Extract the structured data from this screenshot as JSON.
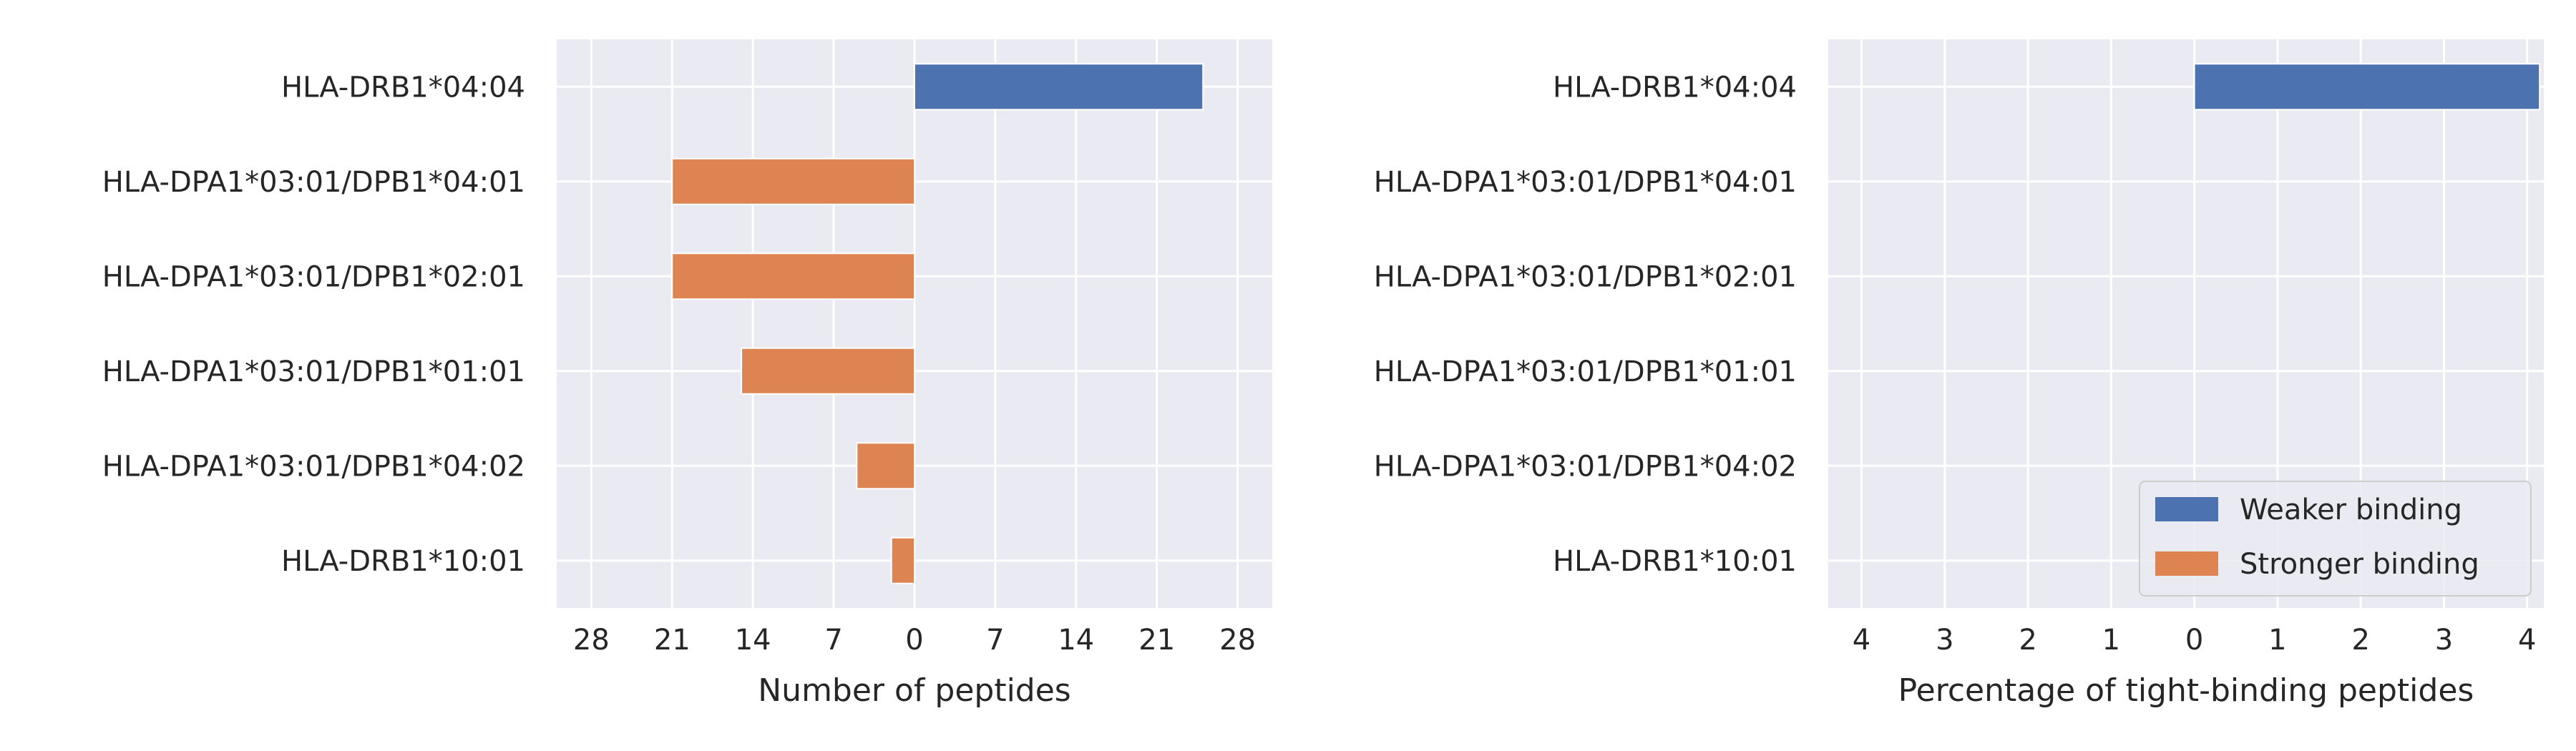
{
  "colors": {
    "panel_bg": "#eaeaf2",
    "grid": "#ffffff",
    "weaker": "#4c72b0",
    "stronger": "#dd8452",
    "text": "#262626"
  },
  "chart_data": [
    {
      "type": "bar",
      "orientation": "horizontal",
      "categories": [
        "HLA-DRB1*04:04",
        "HLA-DPA1*03:01/DPB1*04:01",
        "HLA-DPA1*03:01/DPB1*02:01",
        "HLA-DPA1*03:01/DPB1*01:01",
        "HLA-DPA1*03:01/DPB1*04:02",
        "HLA-DRB1*10:01"
      ],
      "series": [
        {
          "name": "Weaker binding",
          "values": [
            25,
            0,
            0,
            0,
            0,
            0
          ]
        },
        {
          "name": "Stronger binding",
          "values": [
            0,
            -21,
            -21,
            -15,
            -5,
            -2
          ]
        }
      ],
      "xlabel": "Number of peptides",
      "xlim": [
        -31,
        31
      ],
      "xticks": [
        -28,
        -21,
        -14,
        -7,
        0,
        7,
        14,
        21,
        28
      ],
      "xtick_labels": [
        "28",
        "21",
        "14",
        "7",
        "0",
        "7",
        "14",
        "21",
        "28"
      ],
      "grid": true
    },
    {
      "type": "bar",
      "orientation": "horizontal",
      "categories": [
        "HLA-DRB1*04:04",
        "HLA-DPA1*03:01/DPB1*04:01",
        "HLA-DPA1*03:01/DPB1*02:01",
        "HLA-DPA1*03:01/DPB1*01:01",
        "HLA-DPA1*03:01/DPB1*04:02",
        "HLA-DRB1*10:01"
      ],
      "series": [
        {
          "name": "Weaker binding",
          "values": [
            4.15,
            0,
            0,
            0,
            0,
            0
          ]
        },
        {
          "name": "Stronger binding",
          "values": [
            0,
            0,
            0,
            0,
            0,
            0
          ]
        }
      ],
      "xlabel": "Percentage of tight-binding peptides",
      "xlim": [
        -4.4,
        4.2
      ],
      "xticks": [
        -4,
        -3,
        -2,
        -1,
        0,
        1,
        2,
        3,
        4
      ],
      "xtick_labels": [
        "4",
        "3",
        "2",
        "1",
        "0",
        "1",
        "2",
        "3",
        "4"
      ],
      "grid": true,
      "legend": {
        "position": "lower-right",
        "entries": [
          "Weaker binding",
          "Stronger binding"
        ]
      }
    }
  ]
}
